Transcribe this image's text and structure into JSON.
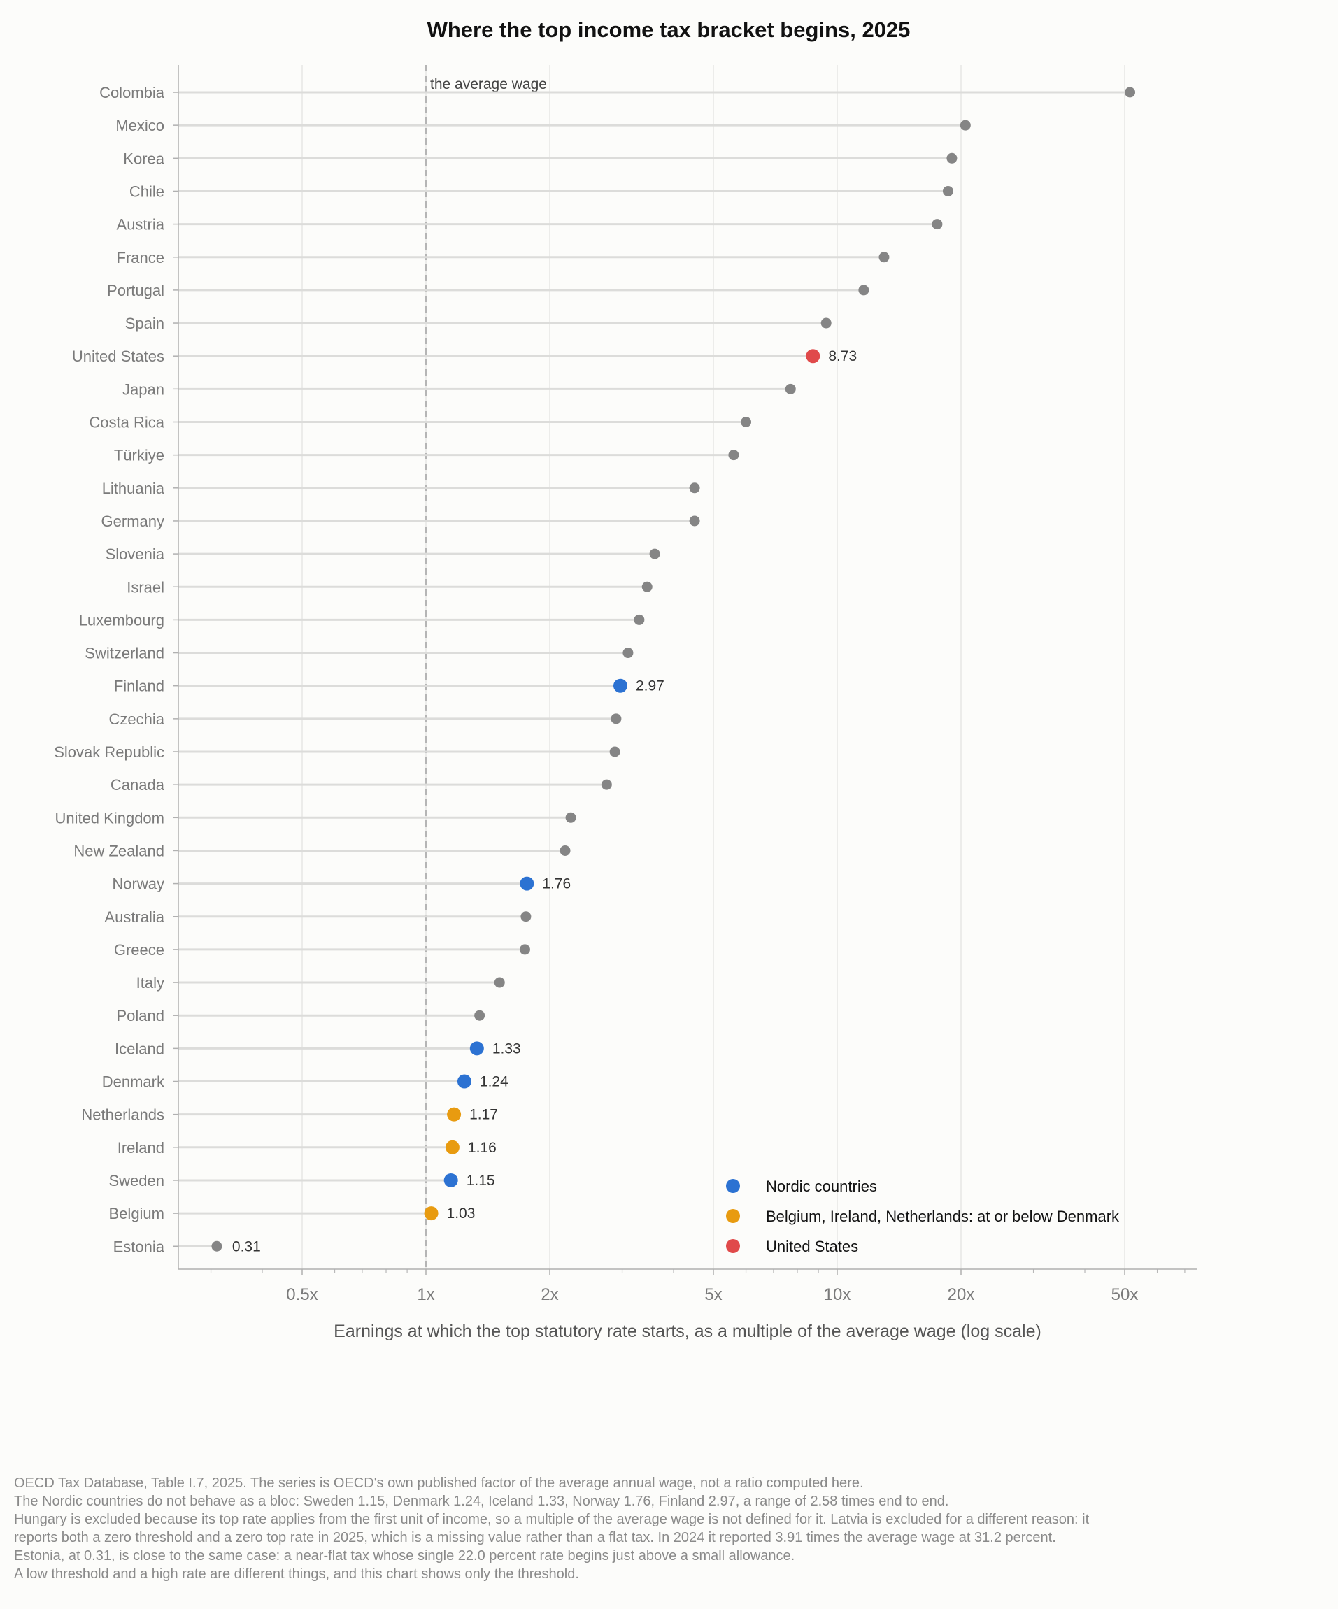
{
  "chart_data": {
    "type": "scatter",
    "title": "Where the top income tax bracket begins, 2025",
    "xlabel": "Earnings at which the top statutory rate starts, as a multiple of the average wage  (log scale)",
    "x_scale": "log",
    "xlim": [
      0.2,
      75
    ],
    "x_ticks": [
      {
        "value": 0.5,
        "label": "0.5x"
      },
      {
        "value": 1,
        "label": "1x"
      },
      {
        "value": 2,
        "label": "2x"
      },
      {
        "value": 5,
        "label": "5x"
      },
      {
        "value": 10,
        "label": "10x"
      },
      {
        "value": 20,
        "label": "20x"
      },
      {
        "value": 50,
        "label": "50x"
      }
    ],
    "grid": true,
    "reference_line": {
      "value": 1,
      "label": "the average wage"
    },
    "legend_position": "bottom-right",
    "legend": [
      {
        "group": "nordic",
        "label": "Nordic countries"
      },
      {
        "group": "benelux",
        "label": "Belgium, Ireland, Netherlands: at or below Denmark"
      },
      {
        "group": "us",
        "label": "United States"
      }
    ],
    "colors": {
      "nordic": "#2c72d2",
      "benelux": "#e89b10",
      "us": "#e04a4a",
      "other": "#858585"
    },
    "points": [
      {
        "country": "Colombia",
        "value": 51.5,
        "group": "other",
        "label": ""
      },
      {
        "country": "Mexico",
        "value": 20.5,
        "group": "other",
        "label": ""
      },
      {
        "country": "Korea",
        "value": 19.0,
        "group": "other",
        "label": ""
      },
      {
        "country": "Chile",
        "value": 18.6,
        "group": "other",
        "label": ""
      },
      {
        "country": "Austria",
        "value": 17.5,
        "group": "other",
        "label": ""
      },
      {
        "country": "France",
        "value": 13.0,
        "group": "other",
        "label": ""
      },
      {
        "country": "Portugal",
        "value": 11.6,
        "group": "other",
        "label": ""
      },
      {
        "country": "Spain",
        "value": 9.4,
        "group": "other",
        "label": ""
      },
      {
        "country": "United States",
        "value": 8.73,
        "group": "us",
        "label": "8.73"
      },
      {
        "country": "Japan",
        "value": 7.7,
        "group": "other",
        "label": ""
      },
      {
        "country": "Costa Rica",
        "value": 6.0,
        "group": "other",
        "label": ""
      },
      {
        "country": "Türkiye",
        "value": 5.6,
        "group": "other",
        "label": ""
      },
      {
        "country": "Lithuania",
        "value": 4.5,
        "group": "other",
        "label": ""
      },
      {
        "country": "Germany",
        "value": 4.5,
        "group": "other",
        "label": ""
      },
      {
        "country": "Slovenia",
        "value": 3.6,
        "group": "other",
        "label": ""
      },
      {
        "country": "Israel",
        "value": 3.45,
        "group": "other",
        "label": ""
      },
      {
        "country": "Luxembourg",
        "value": 3.3,
        "group": "other",
        "label": ""
      },
      {
        "country": "Switzerland",
        "value": 3.1,
        "group": "other",
        "label": ""
      },
      {
        "country": "Finland",
        "value": 2.97,
        "group": "nordic",
        "label": "2.97"
      },
      {
        "country": "Czechia",
        "value": 2.9,
        "group": "other",
        "label": ""
      },
      {
        "country": "Slovak Republic",
        "value": 2.88,
        "group": "other",
        "label": ""
      },
      {
        "country": "Canada",
        "value": 2.75,
        "group": "other",
        "label": ""
      },
      {
        "country": "United Kingdom",
        "value": 2.25,
        "group": "other",
        "label": ""
      },
      {
        "country": "New Zealand",
        "value": 2.18,
        "group": "other",
        "label": ""
      },
      {
        "country": "Norway",
        "value": 1.76,
        "group": "nordic",
        "label": "1.76"
      },
      {
        "country": "Australia",
        "value": 1.75,
        "group": "other",
        "label": ""
      },
      {
        "country": "Greece",
        "value": 1.74,
        "group": "other",
        "label": ""
      },
      {
        "country": "Italy",
        "value": 1.51,
        "group": "other",
        "label": ""
      },
      {
        "country": "Poland",
        "value": 1.35,
        "group": "other",
        "label": ""
      },
      {
        "country": "Iceland",
        "value": 1.33,
        "group": "nordic",
        "label": "1.33"
      },
      {
        "country": "Denmark",
        "value": 1.24,
        "group": "nordic",
        "label": "1.24"
      },
      {
        "country": "Netherlands",
        "value": 1.17,
        "group": "benelux",
        "label": "1.17"
      },
      {
        "country": "Ireland",
        "value": 1.16,
        "group": "benelux",
        "label": "1.16"
      },
      {
        "country": "Sweden",
        "value": 1.15,
        "group": "nordic",
        "label": "1.15"
      },
      {
        "country": "Belgium",
        "value": 1.03,
        "group": "benelux",
        "label": "1.03"
      },
      {
        "country": "Estonia",
        "value": 0.31,
        "group": "other",
        "label": "0.31"
      }
    ]
  },
  "footnote": [
    "OECD Tax Database, Table I.7, 2025. The series is OECD's own published factor of the average annual wage, not a ratio computed here.",
    "The Nordic countries do not behave as a bloc: Sweden 1.15, Denmark 1.24, Iceland 1.33, Norway 1.76, Finland 2.97, a range of 2.58 times end to end.",
    "Hungary is excluded because its top rate applies from the first unit of income, so a multiple of the average wage is not defined for it. Latvia is excluded for a different reason: it",
    "reports both a zero threshold and a zero top rate in 2025, which is a missing value rather than a flat tax. In 2024 it reported 3.91 times the average wage at 31.2 percent.",
    "Estonia, at 0.31, is close to the same case: a near-flat tax whose single 22.0 percent rate begins just above a small allowance.",
    "A low threshold and a high rate are different things, and this chart shows only the threshold."
  ]
}
